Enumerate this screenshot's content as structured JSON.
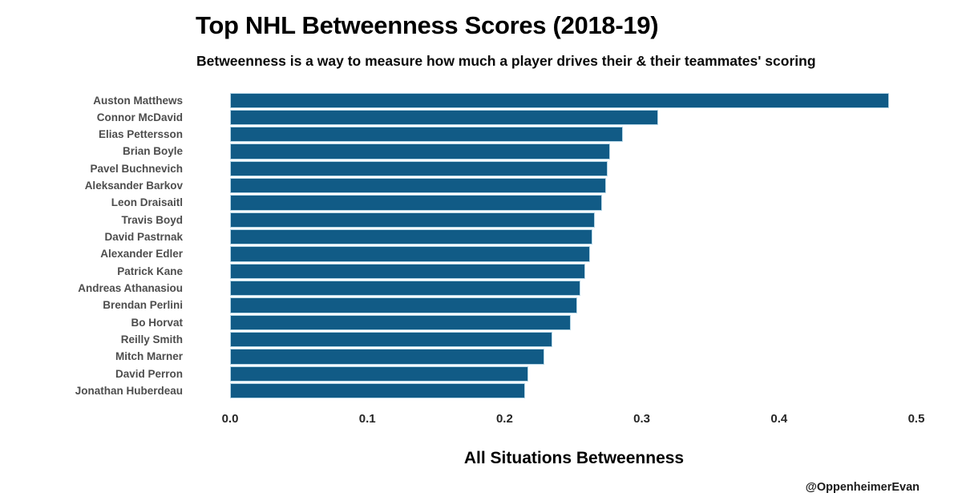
{
  "chart_data": {
    "type": "bar",
    "orientation": "horizontal",
    "title": "Top NHL Betweenness Scores (2018-19)",
    "subtitle": "Betweenness is a way to measure how much a player drives their & their teammates' scoring",
    "xlabel": "All Situations Betweenness",
    "ylabel": "",
    "watermark": "@OppenheimerEvan",
    "xlim": [
      0,
      0.5
    ],
    "xticks": [
      "0.0",
      "0.1",
      "0.2",
      "0.3",
      "0.4",
      "0.5"
    ],
    "grid": false,
    "legend": false,
    "categories": [
      "Auston Matthews",
      "Connor McDavid",
      "Elias Pettersson",
      "Brian Boyle",
      "Pavel Buchnevich",
      "Aleksander Barkov",
      "Leon Draisaitl",
      "Travis Boyd",
      "David Pastrnak",
      "Alexander Edler",
      "Patrick Kane",
      "Andreas Athanasiou",
      "Brendan Perlini",
      "Bo Horvat",
      "Reilly Smith",
      "Mitch Marner",
      "David Perron",
      "Jonathan Huberdeau"
    ],
    "values": [
      0.48,
      0.312,
      0.286,
      0.277,
      0.275,
      0.274,
      0.271,
      0.266,
      0.264,
      0.262,
      0.259,
      0.255,
      0.253,
      0.248,
      0.235,
      0.229,
      0.217,
      0.215
    ],
    "colors": {
      "bar_fill": "#115B86",
      "bar_edge": "#b5d6e6",
      "label_text": "#4d4d4d",
      "tick_text": "#262626",
      "title_text": "#000000"
    }
  }
}
